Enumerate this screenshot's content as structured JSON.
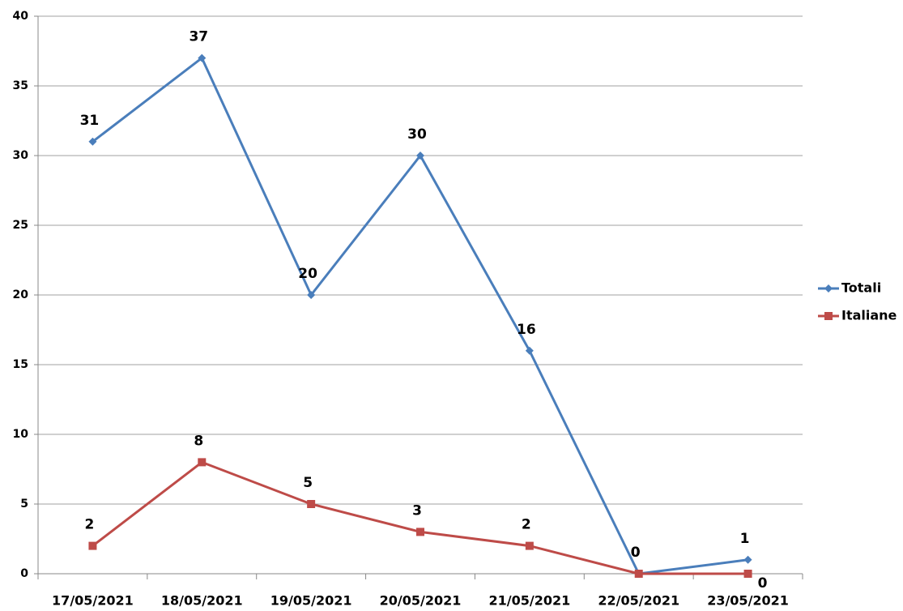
{
  "chart_data": {
    "type": "line",
    "categories": [
      "17/05/2021",
      "18/05/2021",
      "19/05/2021",
      "20/05/2021",
      "21/05/2021",
      "22/05/2021",
      "23/05/2021"
    ],
    "series": [
      {
        "name": "Totali",
        "color": "#4a7ebb",
        "marker": "diamond",
        "values": [
          31,
          37,
          20,
          30,
          16,
          0,
          1
        ]
      },
      {
        "name": "Italiane",
        "color": "#be4b48",
        "marker": "square",
        "values": [
          2,
          8,
          5,
          3,
          2,
          0,
          0
        ]
      }
    ],
    "ylim": [
      0,
      40
    ],
    "yticks": [
      0,
      5,
      10,
      15,
      20,
      25,
      30,
      35,
      40
    ],
    "grid": true,
    "legend": "right"
  }
}
